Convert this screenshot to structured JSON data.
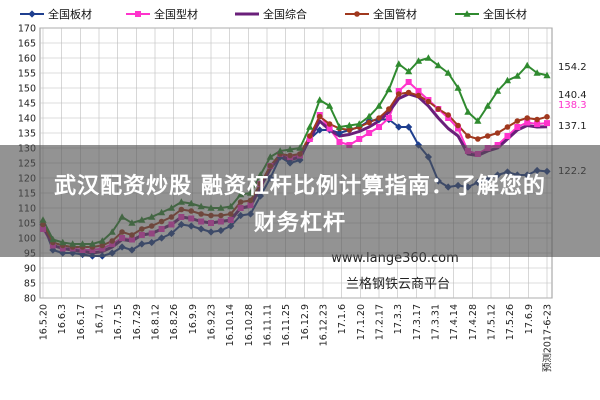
{
  "banner": {
    "line1": "武汉配资炒股 融资杠杆比例计算指南：了解您的",
    "line2": "财务杠杆"
  },
  "watermark": {
    "url": "www.lange360.com",
    "platform": "兰格钢铁云商平台"
  },
  "chart_data": {
    "type": "line",
    "title": "",
    "xlabel": "",
    "ylabel": "",
    "ylim": [
      80,
      170
    ],
    "yticks": [
      80,
      85,
      90,
      95,
      100,
      105,
      110,
      115,
      120,
      125,
      130,
      135,
      140,
      145,
      150,
      155,
      160,
      165,
      170
    ],
    "grid": true,
    "legend_position": "top",
    "x_tick_labels": [
      "16.5.20",
      "16.6.3",
      "16.6.17",
      "16.7.1",
      "16.7.15",
      "16.7.29",
      "16.8.12",
      "16.8.26",
      "16.9.9",
      "16.9.23",
      "16.10.14",
      "16.10.28",
      "16.11.11",
      "16.11.25",
      "16.12.9",
      "16.12.23",
      "17.1.6",
      "17.1.20",
      "17.2.17",
      "17.3.3",
      "17.3.17",
      "17.3.31",
      "17.4.14",
      "17.4.28",
      "17.5.12",
      "17.5.26",
      "17.6.9",
      "预测2017-6-23"
    ],
    "end_labels": [
      {
        "text": "154.2",
        "color": "#1f1f1f"
      },
      {
        "text": "140.4",
        "color": "#1f1f1f"
      },
      {
        "text": "138.3",
        "color": "#ff33cc"
      },
      {
        "text": "137.1",
        "color": "#1f1f1f"
      },
      {
        "text": "122.2",
        "color": "#1f1f1f"
      }
    ],
    "series": [
      {
        "name": "全国板材",
        "color": "#1f3f8f",
        "marker": "diamond",
        "line_width": 2,
        "values": [
          104.5,
          96,
          95,
          95,
          94.5,
          94,
          94,
          95,
          97,
          96,
          98,
          98.5,
          100,
          101.5,
          104.5,
          104,
          103,
          102,
          102.5,
          104,
          107.5,
          108,
          114,
          120,
          127,
          125,
          126,
          133,
          136,
          136,
          135,
          136,
          137,
          139,
          139.5,
          139.5,
          137,
          137,
          131,
          127,
          119,
          117,
          117.5,
          117,
          118.5,
          119.5,
          121,
          122,
          121,
          121,
          122.5,
          122.2
        ]
      },
      {
        "name": "全国型材",
        "color": "#ff33cc",
        "marker": "square",
        "line_width": 2,
        "values": [
          103,
          97.5,
          96.5,
          96.5,
          96,
          96,
          96.5,
          98,
          100,
          99.5,
          101,
          101.5,
          103,
          104.5,
          107,
          106.5,
          105.5,
          105,
          105.5,
          106,
          110,
          111,
          118,
          124,
          128,
          127,
          127.5,
          133,
          141,
          136.5,
          132,
          131,
          133,
          135,
          137,
          140,
          149,
          152,
          149,
          146,
          143,
          140,
          136.5,
          129,
          128,
          130,
          131,
          134,
          137,
          138.5,
          138,
          138.3
        ]
      },
      {
        "name": "全国综合",
        "color": "#6a1f7a",
        "marker": "none",
        "line_width": 3,
        "values": [
          104,
          97.5,
          96.5,
          96,
          95.5,
          95,
          95.5,
          97,
          99.5,
          99,
          101,
          101.5,
          103,
          104.5,
          107,
          106.5,
          105.5,
          105,
          105.5,
          106,
          110,
          110.5,
          117,
          123,
          127.5,
          126,
          127,
          133,
          139,
          136,
          134,
          134.5,
          135.5,
          137,
          139,
          142,
          146.5,
          148,
          147,
          144,
          140,
          136.5,
          134,
          128,
          127.5,
          129,
          130,
          133,
          136,
          137.5,
          137,
          137.1
        ]
      },
      {
        "name": "全国管材",
        "color": "#a0381e",
        "marker": "circle",
        "line_width": 2,
        "values": [
          104.5,
          98.5,
          97.5,
          97,
          97,
          97,
          97.5,
          99,
          102,
          101,
          103,
          104,
          105.5,
          107,
          109.5,
          109,
          108,
          107.5,
          107.5,
          108,
          112,
          112.5,
          118,
          124,
          128,
          127.5,
          128,
          134,
          140.5,
          138,
          136.5,
          136,
          137,
          138.5,
          140,
          143,
          148,
          148.5,
          147.5,
          145.5,
          143,
          141,
          137.5,
          134,
          133,
          134,
          135,
          137,
          139,
          140,
          139.5,
          140.4
        ]
      },
      {
        "name": "全国长材",
        "color": "#2f8a2f",
        "marker": "triangle",
        "line_width": 2,
        "values": [
          106,
          99.5,
          98.5,
          98,
          98,
          98,
          99,
          102,
          107,
          105,
          106,
          107,
          108.5,
          110,
          112,
          111.5,
          110.5,
          110,
          110,
          110.5,
          114.5,
          115,
          121,
          127,
          129,
          129.5,
          130,
          137,
          146,
          144,
          137,
          137.5,
          138,
          140.5,
          144,
          149.5,
          158,
          155.5,
          159,
          160,
          157.5,
          155,
          150,
          142,
          139,
          144,
          149,
          152.5,
          154,
          157.5,
          155,
          154.2
        ]
      }
    ]
  }
}
